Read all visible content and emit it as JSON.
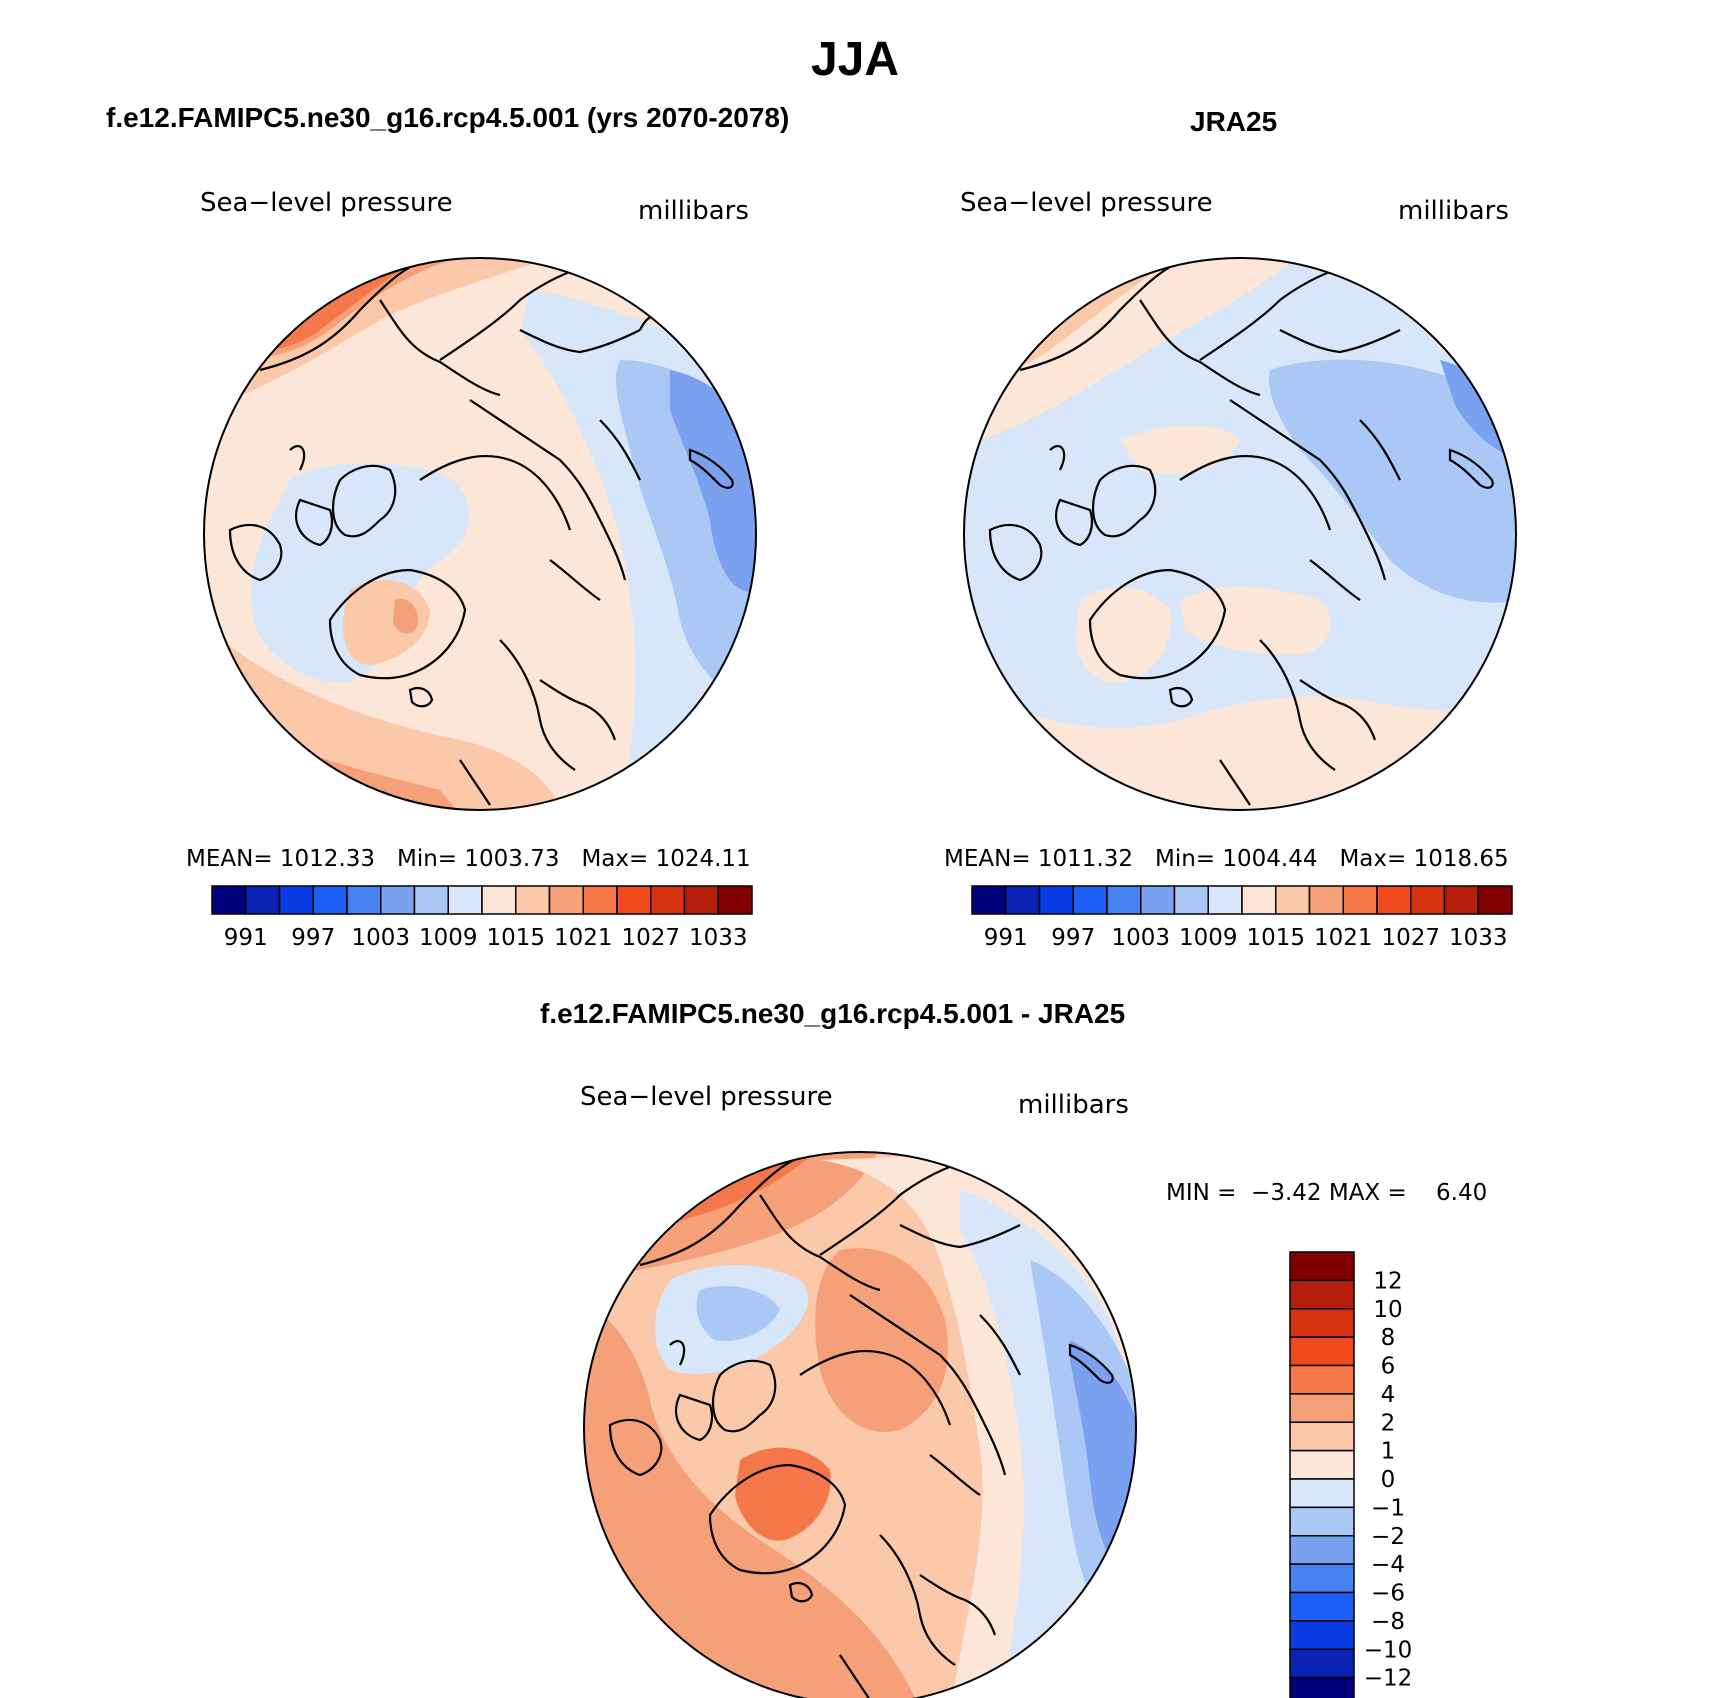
{
  "figure": {
    "season_title": "JJA"
  },
  "panels": [
    {
      "id": "model",
      "title": "f.e12.FAMIPC5.ne30_g16.rcp4.5.001 (yrs 2070-2078)",
      "left_label": "Sea−level pressure",
      "right_label": "millibars",
      "stats": {
        "mean_label": "MEAN=",
        "mean": "1012.33",
        "min_label": "Min=",
        "min": "1003.73",
        "max_label": "Max=",
        "max": "1024.11"
      }
    },
    {
      "id": "obs",
      "title": "JRA25",
      "left_label": "Sea−level pressure",
      "right_label": "millibars",
      "stats": {
        "mean_label": "MEAN=",
        "mean": "1011.32",
        "min_label": "Min=",
        "min": "1004.44",
        "max_label": "Max=",
        "max": "1018.65"
      }
    },
    {
      "id": "diff",
      "title": "f.e12.FAMIPC5.ne30_g16.rcp4.5.001 - JRA25",
      "left_label": "Sea−level pressure",
      "right_label": "millibars",
      "stats": {
        "min_label": "MIN =",
        "min": "−3.42",
        "max_label": "MAX =",
        "max": "6.40"
      }
    }
  ],
  "colorbars": {
    "absolute": {
      "colors": [
        "#00007f",
        "#0a23b4",
        "#0a3ce6",
        "#1e5ff5",
        "#4682f0",
        "#7aa0f0",
        "#aac8f5",
        "#d7e6f8",
        "#fbe6d8",
        "#fbc8aa",
        "#f5a078",
        "#f5784b",
        "#f04b1e",
        "#d7320f",
        "#b41e0a",
        "#820000"
      ],
      "labels": [
        "991",
        "997",
        "1003",
        "1009",
        "1015",
        "1021",
        "1027",
        "1033"
      ]
    },
    "difference": {
      "colors": [
        "#00007f",
        "#0a23b4",
        "#0a3ce6",
        "#1e5ff5",
        "#4682f0",
        "#7aa0f0",
        "#aac8f5",
        "#d7e6f8",
        "#fbe6d8",
        "#fbc8aa",
        "#f5a078",
        "#f5784b",
        "#f04b1e",
        "#d7320f",
        "#b41e0a",
        "#820000"
      ],
      "labels": [
        "12",
        "10",
        "8",
        "6",
        "4",
        "2",
        "1",
        "0",
        "−1",
        "−2",
        "−4",
        "−6",
        "−8",
        "−10",
        "−12"
      ]
    }
  }
}
